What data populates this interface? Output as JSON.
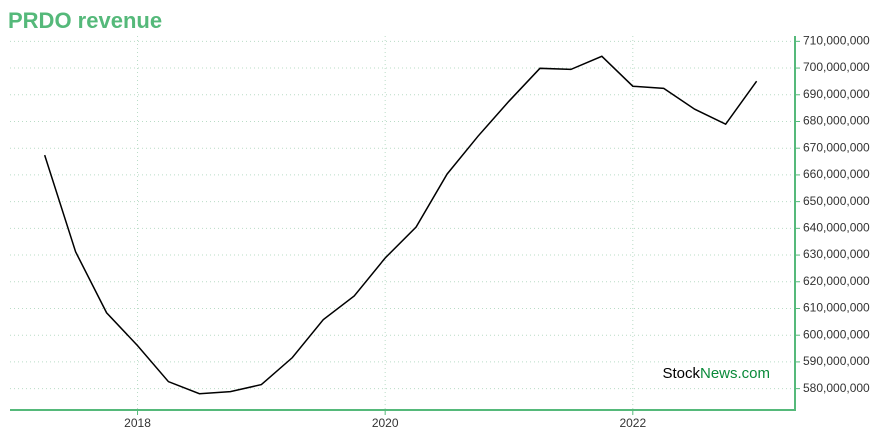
{
  "chart_data": {
    "type": "line",
    "title": "PRDO revenue",
    "watermark": [
      "Stock",
      "News.com"
    ],
    "x": [
      2017.25,
      2017.5,
      2017.75,
      2018.0,
      2018.25,
      2018.5,
      2018.75,
      2019.0,
      2019.25,
      2019.5,
      2019.75,
      2020.0,
      2020.25,
      2020.5,
      2020.75,
      2021.0,
      2021.25,
      2021.5,
      2021.75,
      2022.0,
      2022.25,
      2022.5,
      2022.75,
      2023.0
    ],
    "series": [
      {
        "name": "PRDO revenue",
        "color": "#000000",
        "values": [
          667400000,
          631200000,
          608400000,
          596100000,
          582600000,
          578100000,
          578900000,
          581500000,
          591600000,
          605800000,
          614700000,
          628900000,
          640500000,
          660300000,
          674500000,
          687600000,
          699900000,
          699500000,
          704400000,
          693200000,
          692400000,
          684600000,
          679000000,
          695100000
        ]
      }
    ],
    "xlim": [
      2016.97,
      2023.31
    ],
    "xticks": [
      2018,
      2020,
      2022
    ],
    "ylim": [
      572000000,
      712000000
    ],
    "yticks": [
      {
        "value": 580000000,
        "label": "580,000,000"
      },
      {
        "value": 590000000,
        "label": "590,000,000"
      },
      {
        "value": 600000000,
        "label": "600,000,000"
      },
      {
        "value": 610000000,
        "label": "610,000,000"
      },
      {
        "value": 620000000,
        "label": "620,000,000"
      },
      {
        "value": 630000000,
        "label": "630,000,000"
      },
      {
        "value": 640000000,
        "label": "640,000,000"
      },
      {
        "value": 650000000,
        "label": "650,000,000"
      },
      {
        "value": 660000000,
        "label": "660,000,000"
      },
      {
        "value": 670000000,
        "label": "670,000,000"
      },
      {
        "value": 680000000,
        "label": "680,000,000"
      },
      {
        "value": 690000000,
        "label": "690,000,000"
      },
      {
        "value": 700000000,
        "label": "700,000,000"
      },
      {
        "value": 710000000,
        "label": "710,000,000"
      }
    ],
    "grid": true,
    "axis_color": "#55b97a"
  }
}
